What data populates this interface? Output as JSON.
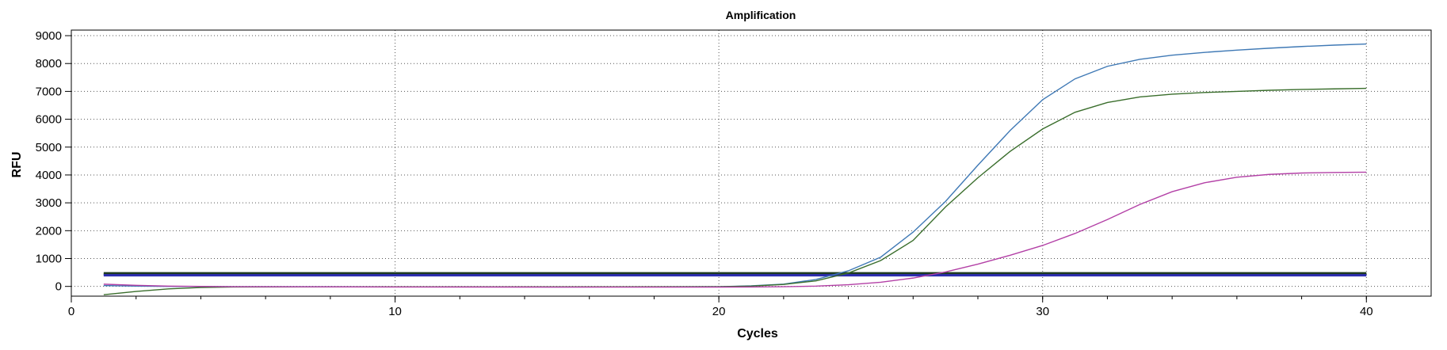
{
  "chart_data": {
    "type": "line",
    "title": "Amplification",
    "xlabel": "Cycles",
    "ylabel": "RFU",
    "xlim": [
      0,
      42
    ],
    "ylim": [
      -350,
      9200
    ],
    "xticks": [
      0,
      10,
      20,
      30,
      40
    ],
    "yticks": [
      0,
      1000,
      2000,
      3000,
      4000,
      5000,
      6000,
      7000,
      8000,
      9000
    ],
    "grid": true,
    "legend": "none",
    "series": [
      {
        "color": "#3f79b5",
        "points": [
          [
            1,
            30
          ],
          [
            2,
            10
          ],
          [
            3,
            0
          ],
          [
            4,
            -5
          ],
          [
            5,
            -10
          ],
          [
            10,
            -15
          ],
          [
            15,
            -20
          ],
          [
            20,
            -10
          ],
          [
            21,
            20
          ],
          [
            22,
            80
          ],
          [
            23,
            250
          ],
          [
            24,
            560
          ],
          [
            25,
            1050
          ],
          [
            26,
            1950
          ],
          [
            27,
            3050
          ],
          [
            28,
            4350
          ],
          [
            29,
            5600
          ],
          [
            30,
            6700
          ],
          [
            31,
            7450
          ],
          [
            32,
            7900
          ],
          [
            33,
            8150
          ],
          [
            34,
            8300
          ],
          [
            35,
            8400
          ],
          [
            36,
            8480
          ],
          [
            37,
            8550
          ],
          [
            38,
            8610
          ],
          [
            39,
            8660
          ],
          [
            40,
            8700
          ]
        ]
      },
      {
        "color": "#3a6e2c",
        "points": [
          [
            1,
            -300
          ],
          [
            2,
            -180
          ],
          [
            3,
            -90
          ],
          [
            4,
            -40
          ],
          [
            5,
            -20
          ],
          [
            10,
            -15
          ],
          [
            15,
            -15
          ],
          [
            20,
            -10
          ],
          [
            21,
            10
          ],
          [
            22,
            70
          ],
          [
            23,
            200
          ],
          [
            24,
            480
          ],
          [
            25,
            930
          ],
          [
            26,
            1650
          ],
          [
            27,
            2850
          ],
          [
            28,
            3900
          ],
          [
            29,
            4850
          ],
          [
            30,
            5650
          ],
          [
            31,
            6250
          ],
          [
            32,
            6600
          ],
          [
            33,
            6800
          ],
          [
            34,
            6900
          ],
          [
            35,
            6960
          ],
          [
            36,
            7000
          ],
          [
            37,
            7040
          ],
          [
            38,
            7070
          ],
          [
            39,
            7090
          ],
          [
            40,
            7110
          ]
        ]
      },
      {
        "color": "#b340a6",
        "points": [
          [
            1,
            80
          ],
          [
            2,
            40
          ],
          [
            3,
            10
          ],
          [
            4,
            0
          ],
          [
            5,
            -10
          ],
          [
            10,
            -20
          ],
          [
            15,
            -25
          ],
          [
            20,
            -25
          ],
          [
            21,
            -20
          ],
          [
            22,
            -10
          ],
          [
            23,
            10
          ],
          [
            24,
            60
          ],
          [
            25,
            150
          ],
          [
            26,
            300
          ],
          [
            27,
            520
          ],
          [
            28,
            800
          ],
          [
            29,
            1120
          ],
          [
            30,
            1470
          ],
          [
            31,
            1900
          ],
          [
            32,
            2400
          ],
          [
            33,
            2940
          ],
          [
            34,
            3400
          ],
          [
            35,
            3720
          ],
          [
            36,
            3920
          ],
          [
            37,
            4020
          ],
          [
            38,
            4070
          ],
          [
            39,
            4090
          ],
          [
            40,
            4100
          ]
        ]
      }
    ],
    "threshold_lines": [
      {
        "y": 470,
        "color": "#1f3b1f"
      },
      {
        "y": 430,
        "color": "#1f3b1f"
      },
      {
        "y": 400,
        "color": "#2d2db0"
      }
    ]
  }
}
